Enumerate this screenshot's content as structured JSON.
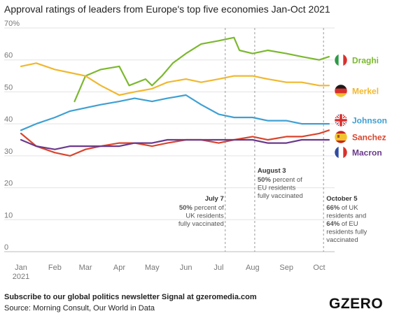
{
  "chart_data": {
    "type": "line",
    "title": "Approval ratings of leaders from Europe's top five economies Jan-Oct 2021",
    "ylim": [
      0,
      70
    ],
    "y_ticks": [
      "0",
      "10",
      "20",
      "30",
      "40",
      "50",
      "60",
      "70%"
    ],
    "y_tick_values": [
      0,
      10,
      20,
      30,
      40,
      50,
      60,
      70
    ],
    "x_tick_labels": [
      "Jan\n2021",
      "Feb",
      "Mar",
      "Apr",
      "May",
      "Jun",
      "Jul",
      "Aug",
      "Sep",
      "Oct"
    ],
    "x_tick_dates": [
      "2021-01-01",
      "2021-02-01",
      "2021-03-01",
      "2021-04-01",
      "2021-05-01",
      "2021-06-01",
      "2021-07-01",
      "2021-08-01",
      "2021-09-01",
      "2021-10-01"
    ],
    "x_range": [
      "2021-01-01",
      "2021-10-10"
    ],
    "grid": "horizontal",
    "series": [
      {
        "name": "Draghi",
        "color": "#7cb82f",
        "x": [
          "2021-02-19",
          "2021-03-01",
          "2021-03-15",
          "2021-04-01",
          "2021-04-10",
          "2021-04-25",
          "2021-05-01",
          "2021-05-10",
          "2021-05-20",
          "2021-06-01",
          "2021-06-15",
          "2021-07-01",
          "2021-07-15",
          "2021-07-20",
          "2021-08-01",
          "2021-08-15",
          "2021-09-01",
          "2021-09-15",
          "2021-10-01",
          "2021-10-10"
        ],
        "values": [
          47,
          55,
          57,
          58,
          52,
          54,
          52,
          55,
          59,
          62,
          65,
          66,
          67,
          63,
          62,
          63,
          62,
          61,
          60,
          61
        ]
      },
      {
        "name": "Merkel",
        "color": "#f0b830",
        "x": [
          "2021-01-01",
          "2021-01-15",
          "2021-02-01",
          "2021-02-15",
          "2021-03-01",
          "2021-03-15",
          "2021-04-01",
          "2021-04-15",
          "2021-05-01",
          "2021-05-15",
          "2021-06-01",
          "2021-06-15",
          "2021-07-01",
          "2021-07-15",
          "2021-08-01",
          "2021-08-15",
          "2021-09-01",
          "2021-09-15",
          "2021-10-01",
          "2021-10-10"
        ],
        "values": [
          58,
          59,
          57,
          56,
          55,
          52,
          49,
          50,
          51,
          53,
          54,
          53,
          54,
          55,
          55,
          54,
          53,
          53,
          52,
          52
        ]
      },
      {
        "name": "Johnson",
        "color": "#3fa0d2",
        "x": [
          "2021-01-01",
          "2021-01-15",
          "2021-02-01",
          "2021-02-15",
          "2021-03-01",
          "2021-03-15",
          "2021-04-01",
          "2021-04-15",
          "2021-05-01",
          "2021-05-15",
          "2021-06-01",
          "2021-06-15",
          "2021-07-01",
          "2021-07-15",
          "2021-08-01",
          "2021-08-15",
          "2021-09-01",
          "2021-09-15",
          "2021-10-01",
          "2021-10-10"
        ],
        "values": [
          38,
          40,
          42,
          44,
          45,
          46,
          47,
          48,
          47,
          48,
          49,
          46,
          43,
          42,
          42,
          41,
          41,
          40,
          40,
          40
        ]
      },
      {
        "name": "Sanchez",
        "color": "#d9452c",
        "x": [
          "2021-01-01",
          "2021-01-15",
          "2021-02-01",
          "2021-02-15",
          "2021-03-01",
          "2021-03-15",
          "2021-04-01",
          "2021-04-15",
          "2021-05-01",
          "2021-05-15",
          "2021-06-01",
          "2021-06-15",
          "2021-07-01",
          "2021-07-15",
          "2021-08-01",
          "2021-08-15",
          "2021-09-01",
          "2021-09-15",
          "2021-10-01",
          "2021-10-10"
        ],
        "values": [
          37,
          33,
          31,
          30,
          32,
          33,
          34,
          34,
          33,
          34,
          35,
          35,
          34,
          35,
          36,
          35,
          36,
          36,
          37,
          38
        ]
      },
      {
        "name": "Macron",
        "color": "#6a3a8c",
        "x": [
          "2021-01-01",
          "2021-01-15",
          "2021-02-01",
          "2021-02-15",
          "2021-03-01",
          "2021-03-15",
          "2021-04-01",
          "2021-04-15",
          "2021-05-01",
          "2021-05-15",
          "2021-06-01",
          "2021-06-15",
          "2021-07-01",
          "2021-07-15",
          "2021-08-01",
          "2021-08-15",
          "2021-09-01",
          "2021-09-15",
          "2021-10-01",
          "2021-10-10"
        ],
        "values": [
          35,
          33,
          32,
          33,
          33,
          33,
          33,
          34,
          34,
          35,
          35,
          35,
          35,
          35,
          35,
          34,
          34,
          35,
          35,
          35
        ]
      }
    ],
    "series_labels": [
      "Draghi",
      "Merkel",
      "Johnson",
      "Sanchez",
      "Macron"
    ],
    "annotations": [
      {
        "date": "2021-07-07",
        "head": "July 7",
        "lines": [
          [
            {
              "t": "50%",
              "b": true
            },
            {
              "t": " percent of",
              "b": false
            }
          ],
          [
            {
              "t": "UK residents",
              "b": false
            }
          ],
          [
            {
              "t": "fully vaccinated",
              "b": false
            }
          ]
        ]
      },
      {
        "date": "2021-08-03",
        "head": "August 3",
        "lines": [
          [
            {
              "t": "50%",
              "b": true
            },
            {
              "t": " percent of",
              "b": false
            }
          ],
          [
            {
              "t": "EU residents",
              "b": false
            }
          ],
          [
            {
              "t": "fully vaccinated",
              "b": false
            }
          ]
        ]
      },
      {
        "date": "2021-10-05",
        "head": "October 5",
        "lines": [
          [
            {
              "t": "66%",
              "b": true
            },
            {
              "t": " of UK",
              "b": false
            }
          ],
          [
            {
              "t": "residents and",
              "b": false
            }
          ],
          [
            {
              "t": "64%",
              "b": true
            },
            {
              "t": " of EU",
              "b": false
            }
          ],
          [
            {
              "t": "residents fully",
              "b": false
            }
          ],
          [
            {
              "t": "vaccinated",
              "b": false
            }
          ]
        ]
      }
    ]
  },
  "footer": {
    "subscribe": "Subscribe to our global politics newsletter Signal at gzeromedia.com",
    "source": "Source: Morning Consult, Our World in Data",
    "brand": "GZERO"
  }
}
